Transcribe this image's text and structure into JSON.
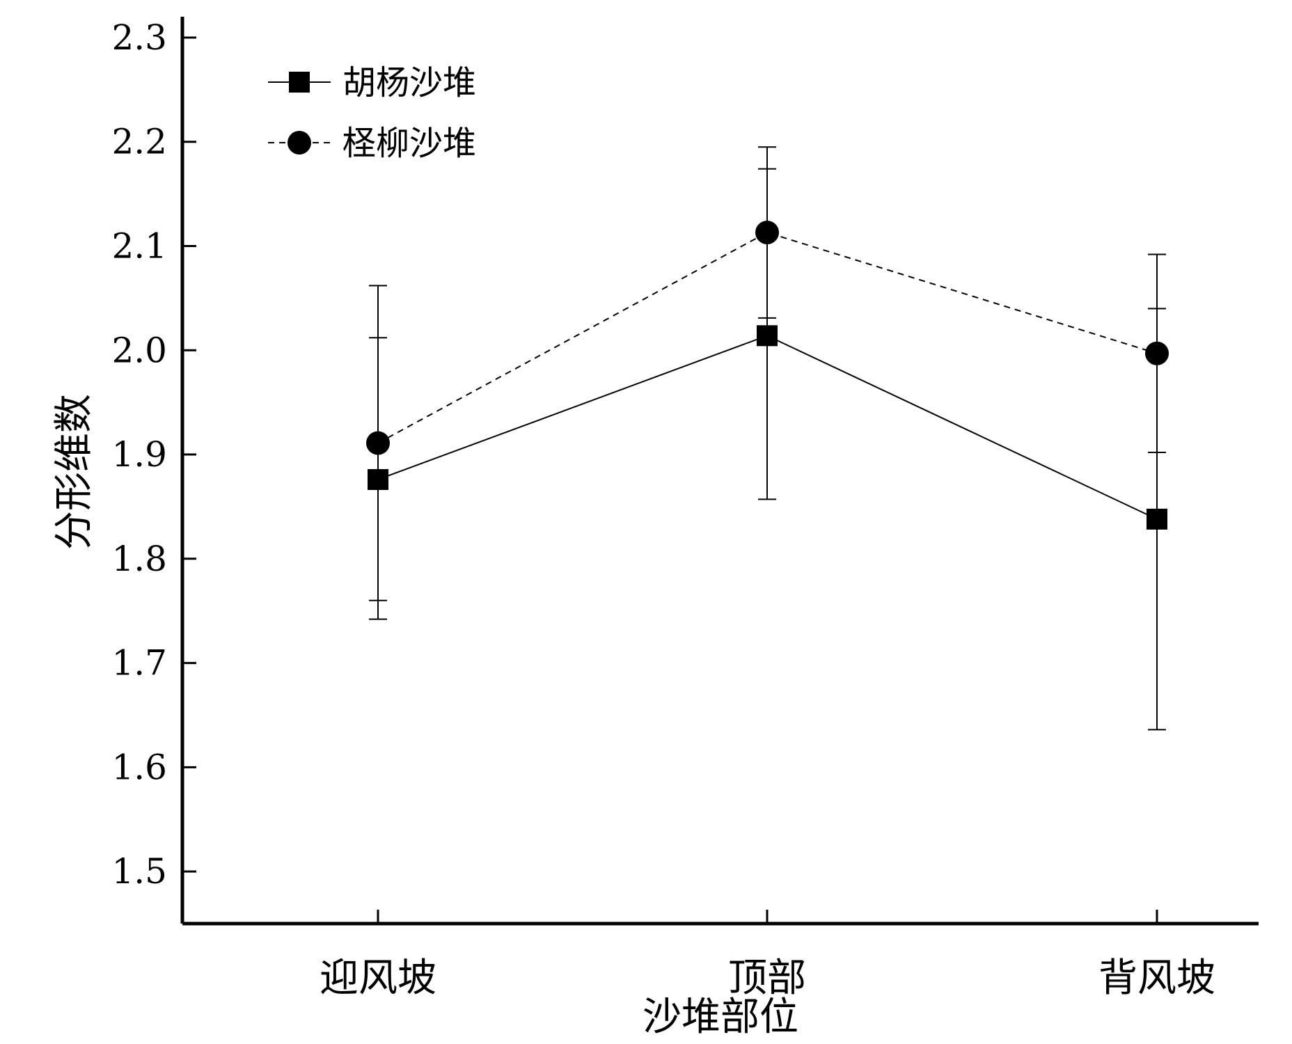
{
  "chart_data": {
    "type": "line",
    "title": "",
    "xlabel": "沙堆部位",
    "ylabel": "分形维数",
    "categories": [
      "迎风坡",
      "顶部",
      "背风坡"
    ],
    "ylim": [
      1.45,
      2.32
    ],
    "yticks": [
      "1.5",
      "1.6",
      "1.7",
      "1.8",
      "1.9",
      "2.0",
      "2.1",
      "2.2",
      "2.3"
    ],
    "grid": false,
    "legend_position": "top-left",
    "series": [
      {
        "name": "胡杨沙堆",
        "marker": "square",
        "line_style": "solid",
        "values": [
          1.876,
          2.014,
          1.838
        ],
        "err_low": [
          1.742,
          1.857,
          1.636
        ],
        "err_high": [
          2.012,
          2.174,
          2.04
        ]
      },
      {
        "name": "柽柳沙堆",
        "marker": "circle",
        "line_style": "dashed",
        "values": [
          1.911,
          2.113,
          1.997
        ],
        "err_low": [
          1.76,
          2.031,
          1.902
        ],
        "err_high": [
          2.062,
          2.195,
          2.092
        ]
      }
    ],
    "colors": {
      "line": "#000000",
      "marker": "#000000"
    }
  }
}
